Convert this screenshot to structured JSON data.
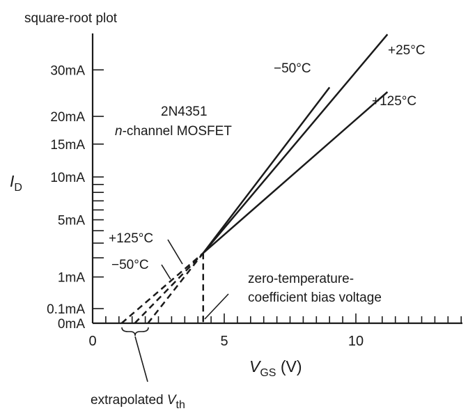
{
  "chart_data": {
    "type": "line",
    "title": "square-root plot",
    "device": "2N4351",
    "device_type_italic": "n",
    "device_type_rest": "-channel MOSFET",
    "x_axis": {
      "label_main": "V",
      "label_sub": "GS",
      "label_unit": " (V)",
      "ticks": [
        0,
        5,
        10
      ],
      "tick_labels": [
        "0",
        "5",
        "10"
      ],
      "range": [
        0,
        14.5
      ],
      "minor_step": 0.5
    },
    "y_axis": {
      "label_main": "I",
      "label_sub": "D",
      "scale": "sqrt",
      "unit": "mA",
      "range": [
        0,
        42
      ],
      "labeled_ticks": [
        0,
        0.1,
        1,
        5,
        10,
        15,
        20,
        30
      ],
      "tick_labels": [
        "0mA",
        "0.1mA",
        "1mA",
        "5mA",
        "10mA",
        "15mA",
        "20mA",
        "30mA"
      ],
      "minor_ticks": [
        2,
        3,
        4,
        6,
        7,
        8,
        9
      ]
    },
    "series": [
      {
        "name": "−50°C",
        "solid": [
          [
            4.2,
            2.3
          ],
          [
            9.0,
            26.0
          ]
        ],
        "extrapolated": [
          [
            2.1,
            0.0
          ],
          [
            4.2,
            2.3
          ]
        ]
      },
      {
        "name": "+25°C",
        "solid": [
          [
            4.2,
            2.3
          ],
          [
            11.2,
            39.0
          ]
        ],
        "extrapolated": []
      },
      {
        "name": "+125°C",
        "solid": [
          [
            4.2,
            2.3
          ],
          [
            11.2,
            25.0
          ]
        ],
        "extrapolated": [
          [
            1.1,
            0.0
          ],
          [
            4.2,
            2.3
          ]
        ]
      },
      {
        "name": "extrapolation",
        "solid": [],
        "extrapolated": [
          [
            1.6,
            0.0
          ],
          [
            4.2,
            2.3
          ]
        ]
      }
    ],
    "zero_tc_point": {
      "x": 4.2,
      "y": 2.3
    },
    "annotations": {
      "zero_tc_line1": "zero-temperature-",
      "zero_tc_line2": "coefficient bias voltage",
      "vth_label_main": "extrapolated V",
      "vth_label_sub": "th",
      "vth_range": [
        1.1,
        2.1
      ]
    }
  }
}
